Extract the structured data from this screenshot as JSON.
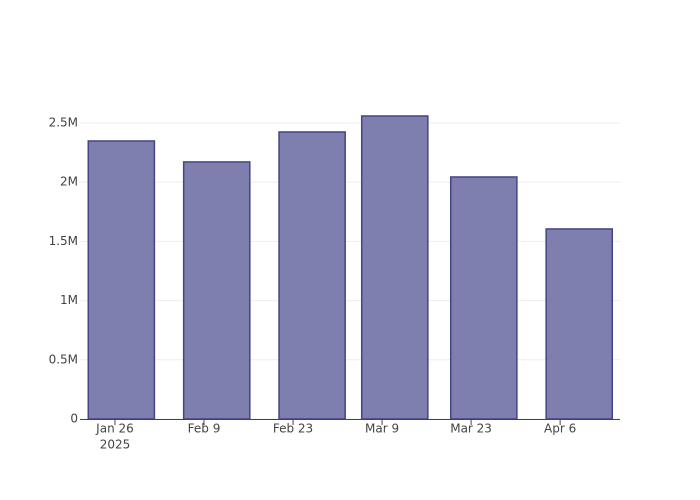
{
  "chart_data": {
    "type": "bar",
    "x": [
      "2025-01-27",
      "2025-02-11",
      "2025-02-26",
      "2025-03-11",
      "2025-03-25",
      "2025-04-09"
    ],
    "values": [
      2348000,
      2171000,
      2424000,
      2559000,
      2044000,
      1605000
    ],
    "color": "#7e7eaf",
    "edge_color": "#454585",
    "xlim": [
      "2025-01-20T12:00",
      "2025-04-15T10:00"
    ],
    "xticks": [
      {
        "value": "2025-01-26",
        "label": "Jan 26",
        "sublabel": "2025"
      },
      {
        "value": "2025-02-09",
        "label": "Feb 9"
      },
      {
        "value": "2025-02-23",
        "label": "Feb 23"
      },
      {
        "value": "2025-03-09",
        "label": "Mar 9"
      },
      {
        "value": "2025-03-23",
        "label": "Mar 23"
      },
      {
        "value": "2025-04-06",
        "label": "Apr 6"
      }
    ],
    "ylim": [
      0,
      2694000
    ],
    "yticks": [
      0,
      {
        "value": 500000,
        "label": "0.5M"
      },
      {
        "value": 1000000,
        "label": "1M"
      },
      {
        "value": 1500000,
        "label": "1.5M"
      },
      {
        "value": 2000000,
        "label": "2M"
      },
      {
        "value": 2500000,
        "label": "2.5M"
      }
    ],
    "grid": true
  }
}
